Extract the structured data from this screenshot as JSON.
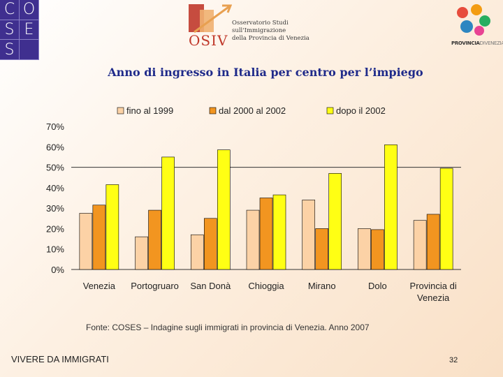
{
  "header": {
    "coses_letters": [
      "C",
      "O",
      "S",
      "E",
      "S",
      ""
    ],
    "osiv": {
      "mark": "OSIV",
      "line1": "Osservatorio Studi",
      "line2": "sull'Immigrazione",
      "line3": "della Provincia di Venezia"
    },
    "provincia": {
      "part1": "PROVINCIA",
      "part2": "DIVENEZIA"
    }
  },
  "colors": {
    "fino_al_1999": "#fcd2a6",
    "dal_2000_al_2002": "#f29520",
    "dopo_il_2002": "#ffff14",
    "title": "#1f2a8a",
    "coses_bg": "#3f2f8f"
  },
  "chart_data": {
    "type": "bar",
    "title": "Anno di ingresso in Italia per centro per l’impiego",
    "categories": [
      "Venezia",
      "Portogruaro",
      "San Donà",
      "Chioggia",
      "Mirano",
      "Dolo",
      "Provincia di Venezia"
    ],
    "series": [
      {
        "name": "fino al 1999",
        "values": [
          27.5,
          16,
          17,
          29,
          34,
          20,
          24
        ]
      },
      {
        "name": "dal 2000 al 2002",
        "values": [
          31.5,
          29,
          25,
          35,
          20,
          19.5,
          27
        ]
      },
      {
        "name": "dopo il 2002",
        "values": [
          41.5,
          55,
          58.5,
          36.5,
          47,
          61,
          49.5
        ]
      }
    ],
    "yticks": [
      "0%",
      "10%",
      "20%",
      "30%",
      "40%",
      "50%",
      "60%",
      "70%"
    ],
    "ylim": [
      0,
      70
    ],
    "gridlines": [
      50
    ],
    "legend": "top"
  },
  "footer": {
    "source": "Fonte: COSES – Indagine sugli immigrati in provincia di Venezia. Anno 2007",
    "left": "VIVERE DA IMMIGRATI",
    "page": "32"
  }
}
